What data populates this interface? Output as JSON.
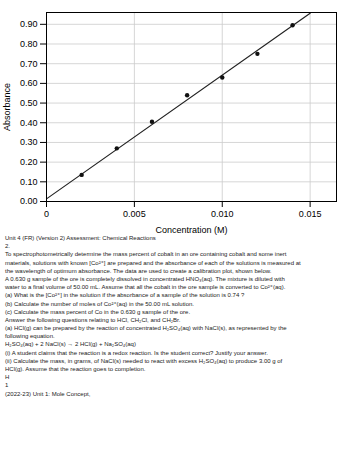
{
  "chart_data": {
    "type": "scatter",
    "xlabel": "Concentration (M)",
    "ylabel": "Absorbance",
    "xlim": [
      0,
      0.0165
    ],
    "ylim": [
      0.0,
      0.96
    ],
    "xticks": [
      0,
      0.005,
      {
        "value": 0.01,
        "label": "0.010"
      },
      0.015
    ],
    "yticks": [
      {
        "value": 0.0,
        "label": "0.00"
      },
      {
        "value": 0.1,
        "label": "0.10"
      },
      {
        "value": 0.2,
        "label": "0.20"
      },
      {
        "value": 0.3,
        "label": "0.30"
      },
      {
        "value": 0.4,
        "label": "0.40"
      },
      {
        "value": 0.5,
        "label": "0.50"
      },
      {
        "value": 0.6,
        "label": "0.60"
      },
      {
        "value": 0.7,
        "label": "0.70"
      },
      {
        "value": 0.8,
        "label": "0.80"
      },
      {
        "value": 0.9,
        "label": "0.90"
      }
    ],
    "grid": true,
    "series": [
      {
        "type": "line",
        "color": "#222222",
        "line_style": "solid",
        "x": [
          0,
          0.015
        ],
        "values": [
          0.01333333333333,
          0.95574404761905
        ]
      },
      {
        "type": "scatter",
        "color": "#111111",
        "marker": "circle",
        "x": [
          0.002,
          0.004,
          0.006,
          0.008,
          0.01,
          0.012,
          0.014
        ],
        "values": [
          0.135,
          0.27,
          0.405,
          0.54,
          0.63,
          0.75,
          0.895
        ]
      }
    ],
    "annotations": [
      "Unit 4 (FR) (Version 2) Assessment: Chemical Reactions",
      "2.",
      "To spectrophotometrically determine the mass percent of cobalt in an ore containing cobalt and some inert",
      "materials, solutions with known [Co²⁺] are prepared and the absorbance of each of the solutions is measured at",
      "the wavelength of optimum absorbance. The data are used to create a calibration plot, shown below.",
      "A 0.630 g sample of the ore is completely dissolved in concentrated HNO₃(aq). The mixture is diluted with",
      "water to a final volume of 50.00 mL. Assume that all the cobalt in the ore sample is converted to Co²⁺(aq).",
      "(a) What is the [Co²⁺] in the solution if the absorbance of a sample of the solution is 0.74 ?",
      "(b) Calculate the number of moles of Co²⁺(aq) in the 50.00 mL solution.",
      "(c) Calculate the mass percent of Co in the 0.630 g sample of the ore.",
      "Answer the following questions relating to HCl, CH₂Cl, and CH₂Br.",
      "(a) HCl(g) can be prepared by the reaction of concentrated H₂SO₄(aq) with NaCl(s), as represented by the",
      "following equation.",
      "H₂SO₄(aq) + 2 NaCl(s) → 2 HCl(g) + Na₂SO₄(aq)",
      "(i) A student claims that the reaction is a redox reaction. Is the student correct? Justify your answer.",
      "(ii) Calculate the mass, in grams, of NaCl(s) needed to react with excess H₂SO₄(aq) to produce 3.00 g of",
      "HCl(g). Assume that the reaction goes to completion.",
      "H",
      "1",
      "(2022-23) Unit 1: Mole Concept,"
    ]
  }
}
